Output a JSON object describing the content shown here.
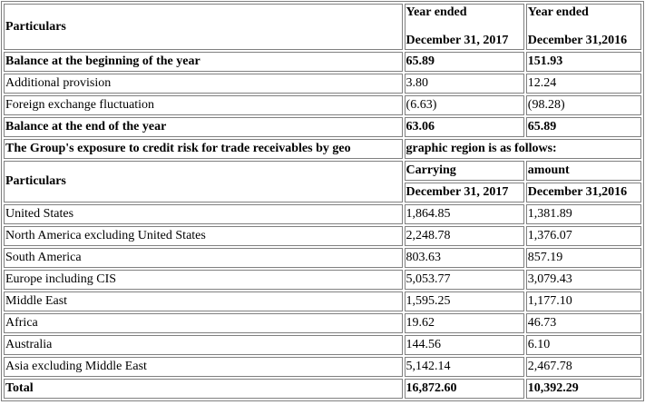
{
  "table1": {
    "header": {
      "particulars": "Particulars",
      "col2_line1": "Year ended",
      "col2_line2": "December 31, 2017",
      "col3_line1": "Year ended",
      "col3_line2": "December 31,2016"
    },
    "rows": [
      {
        "label": "Balance at the beginning of the year",
        "v2017": "65.89",
        "v2016": "151.93",
        "bold": true
      },
      {
        "label": "Additional provision",
        "v2017": "3.80",
        "v2016": "12.24",
        "bold": false
      },
      {
        "label": "Foreign exchange fluctuation",
        "v2017": "(6.63)",
        "v2016": "(98.28)",
        "bold": false
      },
      {
        "label": "Balance at the end of the year",
        "v2017": "63.06",
        "v2016": "65.89",
        "bold": true
      }
    ]
  },
  "section_note": {
    "part1": "The Group's exposure to credit risk for trade receivables by geo",
    "part2": "graphic region is as follows:"
  },
  "table2": {
    "header": {
      "particulars": "Particulars",
      "col2_top": "Carrying",
      "col3_top": "amount",
      "col2_date": "December 31, 2017",
      "col3_date": "December 31,2016"
    },
    "rows": [
      {
        "label": "United States",
        "v2017": "1,864.85",
        "v2016": "1,381.89"
      },
      {
        "label": "North America excluding United States",
        "v2017": "2,248.78",
        "v2016": "1,376.07"
      },
      {
        "label": "South America",
        "v2017": "803.63",
        "v2016": "857.19"
      },
      {
        "label": "Europe including CIS",
        "v2017": "5,053.77",
        "v2016": "3,079.43"
      },
      {
        "label": "Middle East",
        "v2017": "1,595.25",
        "v2016": "1,177.10"
      },
      {
        "label": "Africa",
        "v2017": "19.62",
        "v2016": "46.73"
      },
      {
        "label": "Australia",
        "v2017": "144.56",
        "v2016": "6.10"
      },
      {
        "label": "Asia excluding Middle East",
        "v2017": "5,142.14",
        "v2016": "2,467.78"
      }
    ],
    "total": {
      "label": "Total",
      "v2017": "16,872.60",
      "v2016": "10,392.29"
    }
  }
}
